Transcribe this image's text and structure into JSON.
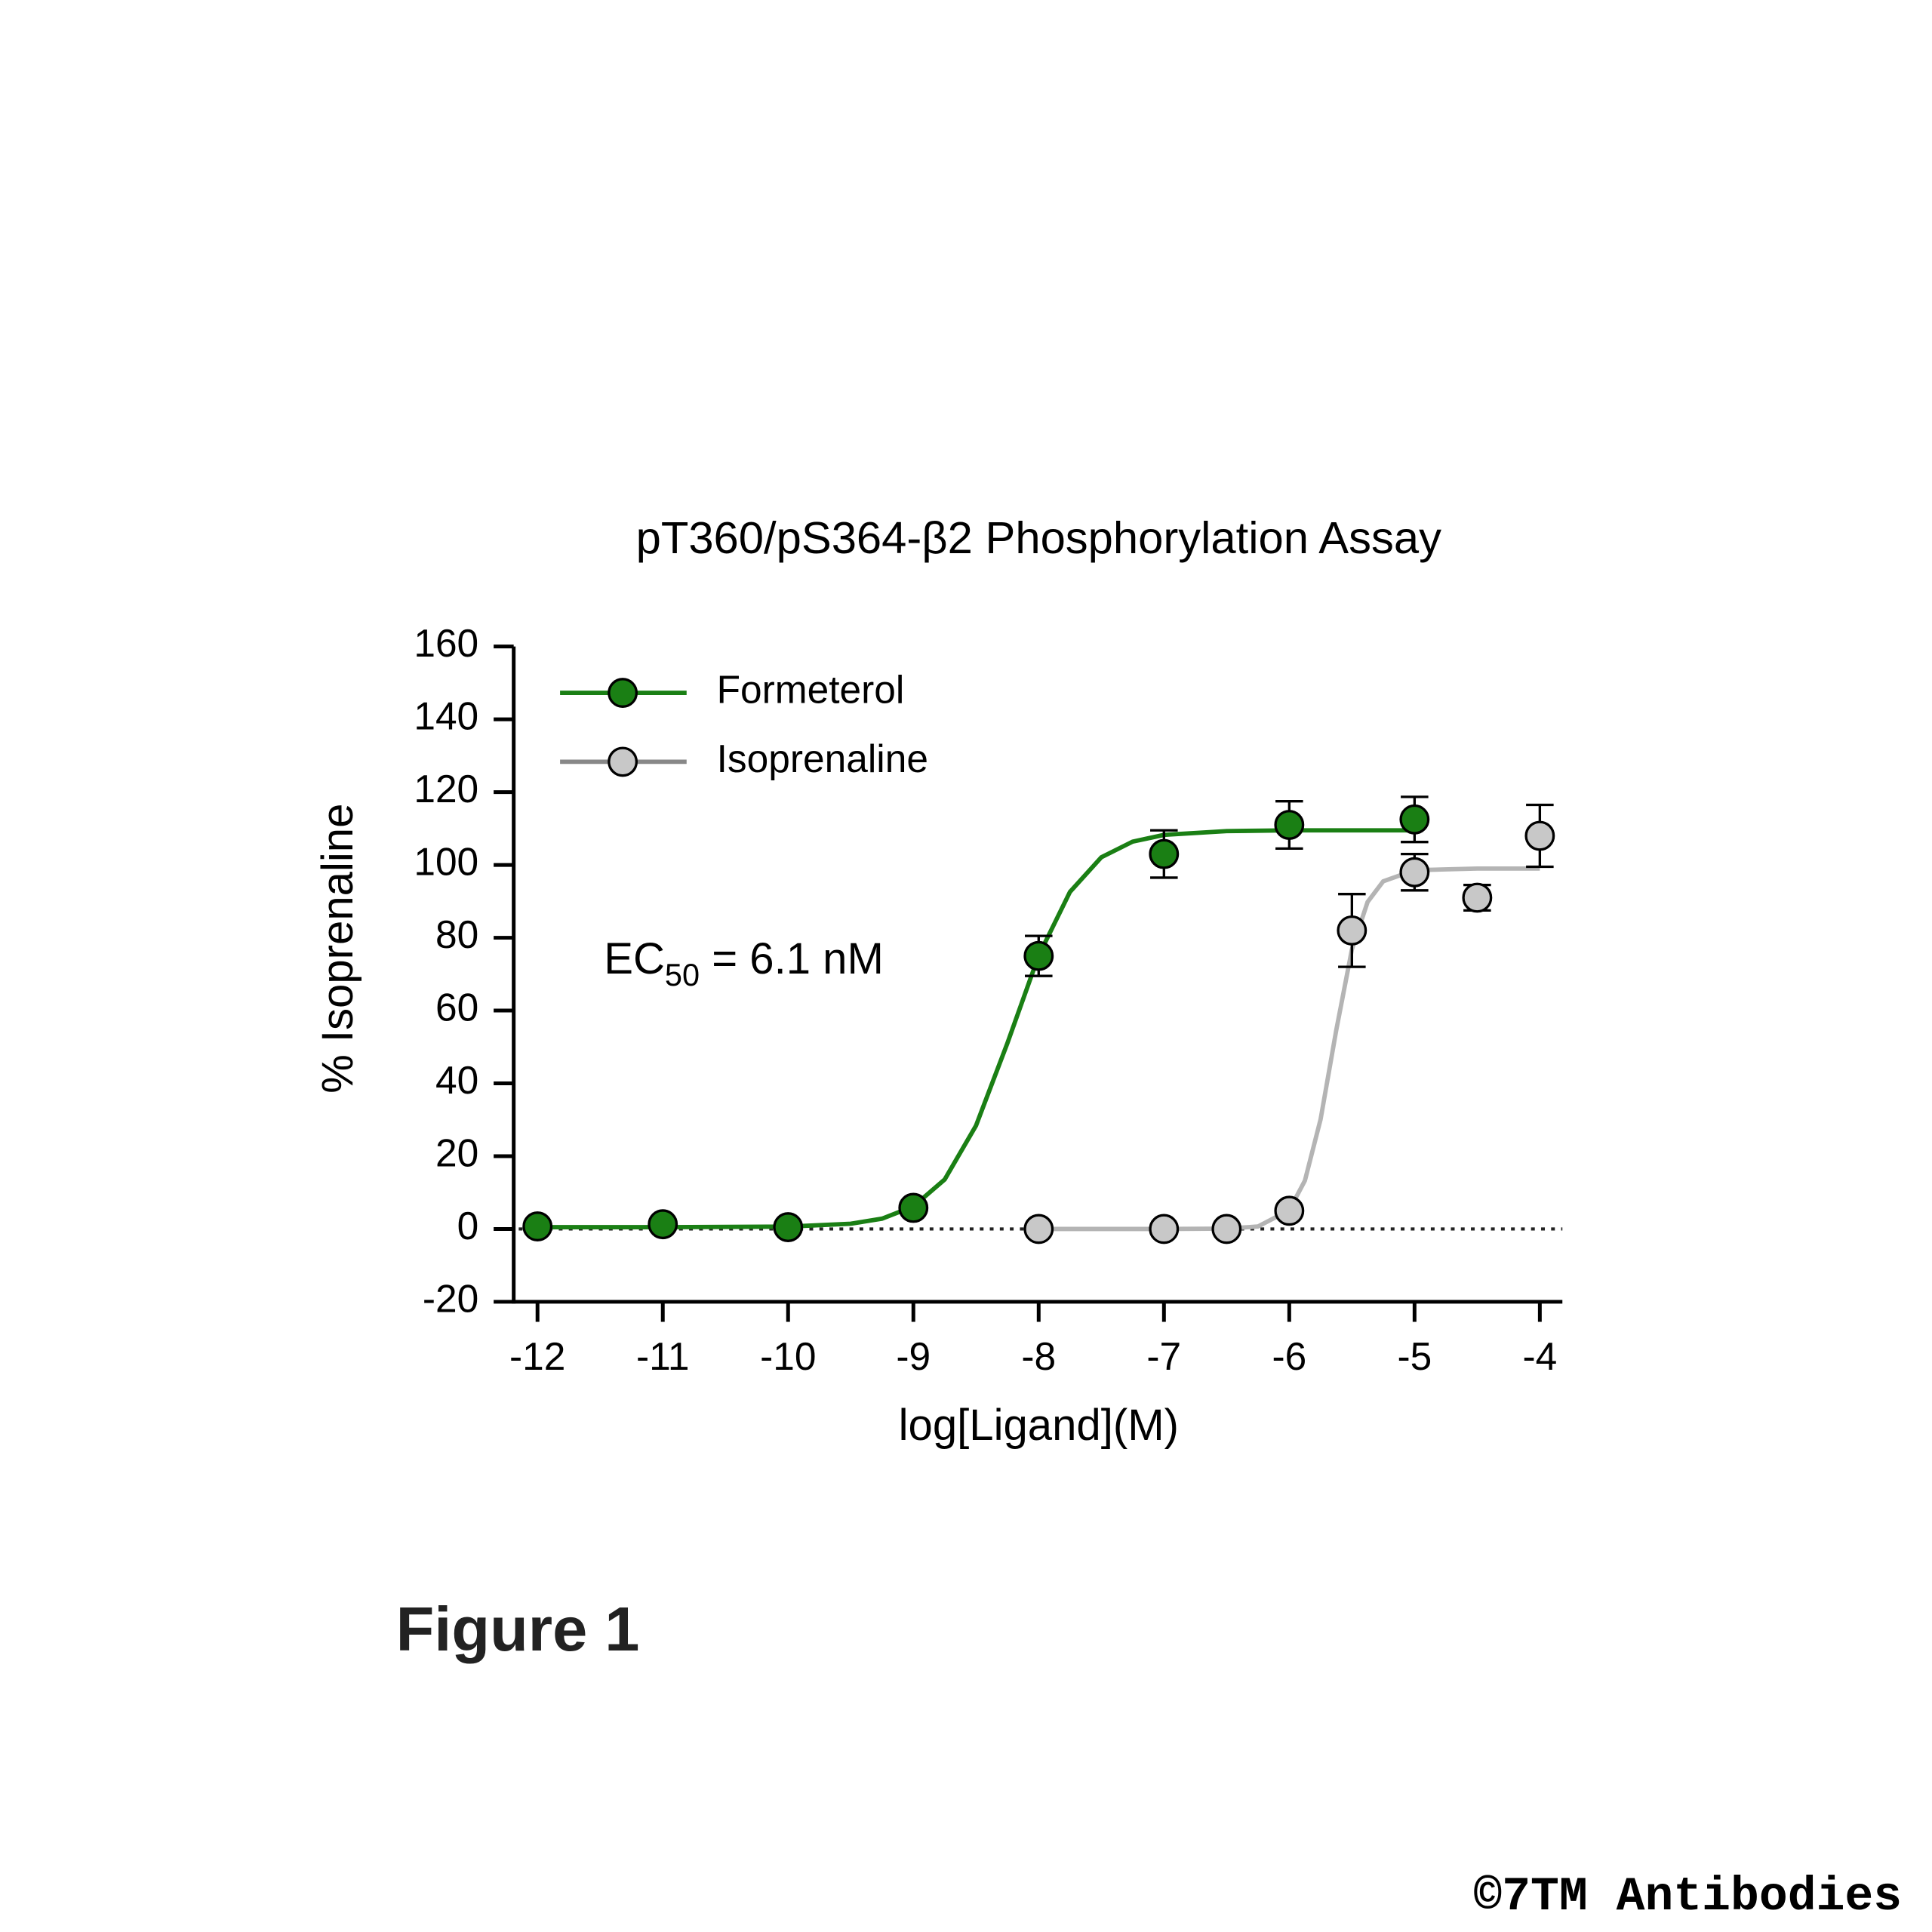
{
  "chart_data": {
    "type": "scatter",
    "title": "pT360/pS364-β2 Phosphorylation Assay",
    "x_label": "log[Ligand](M)",
    "y_label": "% Isoprenaline",
    "annotation": {
      "text": "EC",
      "subscript": "50",
      "rest": " = 6.1 nM"
    },
    "xlim": [
      -12.19,
      -3.82
    ],
    "xticks": [
      -12,
      -11,
      -10,
      -9,
      -8,
      -7,
      -6,
      -5,
      -4
    ],
    "ylim": [
      -20,
      160
    ],
    "yticks": [
      -20,
      0,
      20,
      40,
      60,
      80,
      100,
      120,
      140,
      160
    ],
    "reference_line": 0,
    "legend": "top-left",
    "series": [
      {
        "name": "Formeterol",
        "color": "#1a7f14",
        "line_color": "#1a7f14",
        "x": [
          -12,
          -11,
          -10,
          -9,
          -8,
          -7,
          -6,
          -5
        ],
        "values": [
          0.7,
          1.3,
          0.5,
          5.8,
          75,
          103,
          111,
          112.5
        ],
        "errors": [
          null,
          null,
          null,
          null,
          5.5,
          6.5,
          6.5,
          6.2
        ],
        "fit": {
          "x": [
            -12,
            -11,
            -10,
            -9.5,
            -9.25,
            -9,
            -8.75,
            -8.5,
            -8.25,
            -8,
            -7.75,
            -7.5,
            -7.25,
            -7,
            -6.5,
            -6,
            -5
          ],
          "values": [
            0.5,
            0.5,
            0.65,
            1.44,
            2.83,
            6.2,
            13.6,
            28.4,
            51,
            75.1,
            92.6,
            102.1,
            106.4,
            108.25,
            109.3,
            109.5,
            109.5
          ]
        }
      },
      {
        "name": "Isoprenaline",
        "color": "#c8c8c8",
        "line_color": "#b4b4b4",
        "x": [
          -8,
          -7,
          -6.5,
          -6,
          -5.5,
          -5,
          -4.5,
          -4
        ],
        "values": [
          0,
          0,
          0,
          5,
          82,
          98,
          91,
          108
        ],
        "errors": [
          null,
          null,
          null,
          null,
          10,
          5,
          3.5,
          8.5
        ],
        "fit": {
          "x": [
            -8,
            -7,
            -6.5,
            -6.25,
            -6,
            -5.875,
            -5.75,
            -5.625,
            -5.5,
            -5.375,
            -5.25,
            -5,
            -4.5,
            -4
          ],
          "values": [
            0,
            0,
            0.09,
            0.68,
            5.16,
            13.3,
            30.1,
            54.6,
            76.8,
            89.8,
            95.5,
            98.55,
            99,
            99
          ]
        }
      }
    ]
  },
  "figure_label": "Figure 1",
  "footer": "©7TM Antibodies"
}
